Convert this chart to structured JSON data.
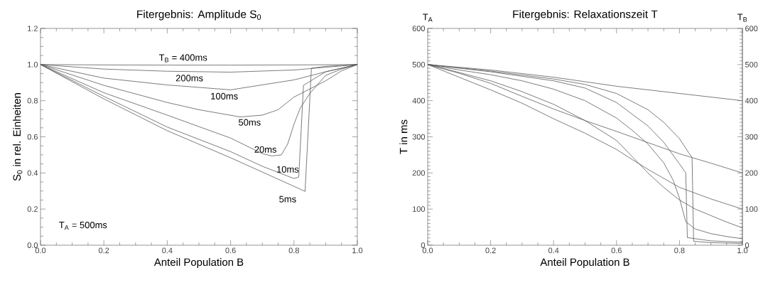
{
  "chart_data": [
    {
      "type": "line",
      "title": "Fitergebnis: Amplitude S$_{0}$",
      "xlabel": "Anteil Population B",
      "ylabel": "S$_{0}$ in rel. Einheiten",
      "xlim": [
        0,
        1
      ],
      "ylim": [
        0,
        1.2
      ],
      "xticks": [
        {
          "value": 0,
          "label": "0.0"
        },
        {
          "value": 0.2,
          "label": "0.2"
        },
        {
          "value": 0.4,
          "label": "0.4"
        },
        {
          "value": 0.6,
          "label": "0.6"
        },
        {
          "value": 0.8,
          "label": "0.8"
        },
        {
          "value": 1,
          "label": "1.0"
        }
      ],
      "yticks": [
        {
          "value": 0,
          "label": "0.0"
        },
        {
          "value": 0.2,
          "label": "0.2"
        },
        {
          "value": 0.4,
          "label": "0.4"
        },
        {
          "value": 0.6,
          "label": "0.6"
        },
        {
          "value": 0.8,
          "label": "0.8"
        },
        {
          "value": 1,
          "label": "1.0"
        },
        {
          "value": 1.2,
          "label": "1.2"
        }
      ],
      "annotations": [
        "T$_{A}$ = 500ms"
      ],
      "series": [
        {
          "name": "T$_{B}$ = 400ms",
          "color": "#5a5a5a",
          "x": [
            0,
            0.2,
            0.4,
            0.6,
            0.8,
            1
          ],
          "values": [
            1,
            0.998,
            0.997,
            0.997,
            0.998,
            1
          ]
        },
        {
          "name": "200ms",
          "color": "#5a5a5a",
          "x": [
            0,
            0.2,
            0.4,
            0.6,
            0.8,
            0.9,
            1
          ],
          "values": [
            1,
            0.975,
            0.963,
            0.958,
            0.97,
            0.985,
            1
          ]
        },
        {
          "name": "100ms",
          "color": "#5a5a5a",
          "x": [
            0,
            0.2,
            0.4,
            0.6,
            0.8,
            0.9,
            1
          ],
          "values": [
            1,
            0.925,
            0.887,
            0.86,
            0.915,
            0.96,
            1
          ]
        },
        {
          "name": "50ms",
          "color": "#5a5a5a",
          "x": [
            0,
            0.2,
            0.4,
            0.5,
            0.63,
            0.7,
            0.75,
            0.8,
            0.9,
            0.95,
            1
          ],
          "values": [
            1,
            0.885,
            0.79,
            0.75,
            0.71,
            0.72,
            0.75,
            0.82,
            0.91,
            0.965,
            1
          ]
        },
        {
          "name": "20ms",
          "color": "#5a5a5a",
          "x": [
            0,
            0.2,
            0.4,
            0.6,
            0.7,
            0.73,
            0.76,
            0.78,
            0.8,
            0.82,
            0.85,
            0.9,
            0.95,
            1
          ],
          "values": [
            1,
            0.844,
            0.72,
            0.593,
            0.507,
            0.494,
            0.5,
            0.56,
            0.67,
            0.76,
            0.84,
            0.94,
            0.975,
            1
          ]
        },
        {
          "name": "10ms",
          "color": "#5a5a5a",
          "x": [
            0,
            0.2,
            0.4,
            0.6,
            0.7,
            0.8,
            0.815,
            0.83,
            0.9,
            1
          ],
          "values": [
            1,
            0.824,
            0.654,
            0.518,
            0.437,
            0.369,
            0.377,
            0.885,
            0.96,
            1
          ]
        },
        {
          "name": "5ms",
          "color": "#5a5a5a",
          "x": [
            0,
            0.2,
            0.4,
            0.6,
            0.8,
            0.835,
            0.855,
            0.9,
            1
          ],
          "values": [
            1,
            0.81,
            0.634,
            0.484,
            0.326,
            0.298,
            0.98,
            0.99,
            1
          ]
        }
      ]
    },
    {
      "type": "line",
      "title": "Fitergebnis: Relaxationszeit T",
      "xlabel": "Anteil Population B",
      "ylabel": "T in ms",
      "xlim": [
        0,
        1
      ],
      "ylim": [
        0,
        600
      ],
      "y2lim": [
        0,
        600
      ],
      "xticks": [
        {
          "value": 0,
          "label": "0.0"
        },
        {
          "value": 0.2,
          "label": "0.2"
        },
        {
          "value": 0.4,
          "label": "0.4"
        },
        {
          "value": 0.6,
          "label": "0.6"
        },
        {
          "value": 0.8,
          "label": "0.8"
        },
        {
          "value": 1,
          "label": "1.0"
        }
      ],
      "yticks": [
        0,
        100,
        200,
        300,
        400,
        500,
        600
      ],
      "y2ticks": [
        0,
        100,
        200,
        300,
        400,
        500,
        600
      ],
      "annotations": [
        "T$_{A}$",
        "T$_{B}$"
      ],
      "series": [
        {
          "color": "#5a5a5a",
          "x": [
            0,
            0.2,
            0.4,
            0.6,
            0.8,
            1
          ],
          "values": [
            500,
            485,
            465,
            440,
            420,
            400
          ]
        },
        {
          "color": "#5a5a5a",
          "x": [
            0,
            0.1,
            0.2,
            0.3,
            0.4,
            0.5,
            0.6,
            0.7,
            0.8,
            0.9,
            1
          ],
          "values": [
            500,
            476,
            448,
            412,
            377,
            345,
            315,
            284,
            253,
            227,
            200
          ]
        },
        {
          "color": "#5a5a5a",
          "x": [
            0,
            0.1,
            0.2,
            0.3,
            0.4,
            0.5,
            0.6,
            0.65,
            0.7,
            0.8,
            0.9,
            1
          ],
          "values": [
            500,
            465,
            430,
            393,
            350,
            310,
            265,
            237,
            210,
            160,
            128,
            100
          ]
        },
        {
          "color": "#5a5a5a",
          "x": [
            0,
            0.1,
            0.2,
            0.3,
            0.4,
            0.5,
            0.6,
            0.65,
            0.7,
            0.75,
            0.8,
            0.85,
            0.9,
            0.95,
            1
          ],
          "values": [
            500,
            478,
            455,
            425,
            390,
            345,
            290,
            245,
            200,
            160,
            125,
            100,
            82,
            64,
            48
          ]
        },
        {
          "color": "#5a5a5a",
          "x": [
            0,
            0.1,
            0.2,
            0.3,
            0.4,
            0.5,
            0.6,
            0.65,
            0.7,
            0.75,
            0.78,
            0.8,
            0.82,
            0.85,
            0.9,
            0.95,
            1
          ],
          "values": [
            500,
            485,
            472,
            455,
            432,
            400,
            352,
            318,
            280,
            228,
            180,
            130,
            65,
            45,
            32,
            24,
            18
          ]
        },
        {
          "color": "#5a5a5a",
          "x": [
            0,
            0.2,
            0.4,
            0.5,
            0.6,
            0.7,
            0.75,
            0.8,
            0.82,
            0.825,
            0.9,
            1
          ],
          "values": [
            500,
            480,
            455,
            435,
            395,
            330,
            285,
            225,
            200,
            21,
            12,
            8
          ]
        },
        {
          "color": "#5a5a5a",
          "x": [
            0,
            0.2,
            0.4,
            0.5,
            0.6,
            0.7,
            0.75,
            0.8,
            0.83,
            0.84,
            0.845,
            0.9,
            1
          ],
          "values": [
            500,
            482,
            460,
            445,
            420,
            375,
            340,
            295,
            255,
            243,
            11,
            7,
            5
          ]
        }
      ]
    }
  ]
}
